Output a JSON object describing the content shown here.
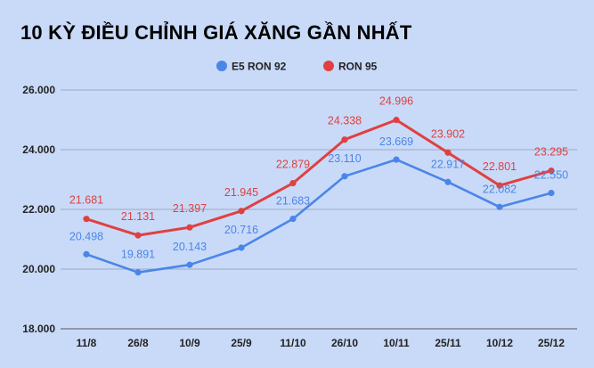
{
  "chart_data": {
    "type": "line",
    "title": "10 KỲ ĐIỀU CHỈNH GIÁ XĂNG GẦN NHẤT",
    "categories": [
      "11/8",
      "26/8",
      "10/9",
      "25/9",
      "11/10",
      "26/10",
      "10/11",
      "25/11",
      "10/12",
      "25/12"
    ],
    "series": [
      {
        "name": "E5 RON 92",
        "color": "#4a86e8",
        "values": [
          20498,
          19891,
          20143,
          20716,
          21683,
          23110,
          23669,
          22917,
          22082,
          22550
        ],
        "labels": [
          "20.498",
          "19.891",
          "20.143",
          "20.716",
          "21.683",
          "23.110",
          "23.669",
          "22.917",
          "22.082",
          "22.550"
        ]
      },
      {
        "name": "RON 95",
        "color": "#e04040",
        "values": [
          21681,
          21131,
          21397,
          21945,
          22879,
          24338,
          24996,
          23902,
          22801,
          23295
        ],
        "labels": [
          "21.681",
          "21.131",
          "21.397",
          "21.945",
          "22.879",
          "24.338",
          "24.996",
          "23.902",
          "22.801",
          "23.295"
        ]
      }
    ],
    "yticks": [
      18000,
      20000,
      22000,
      24000,
      26000
    ],
    "ytick_labels": [
      "18.000",
      "20.000",
      "22.000",
      "24.000",
      "26.000"
    ],
    "ylim": [
      18000,
      26000
    ],
    "grid": true,
    "legend": "top-right",
    "background": "#c9daf8"
  }
}
